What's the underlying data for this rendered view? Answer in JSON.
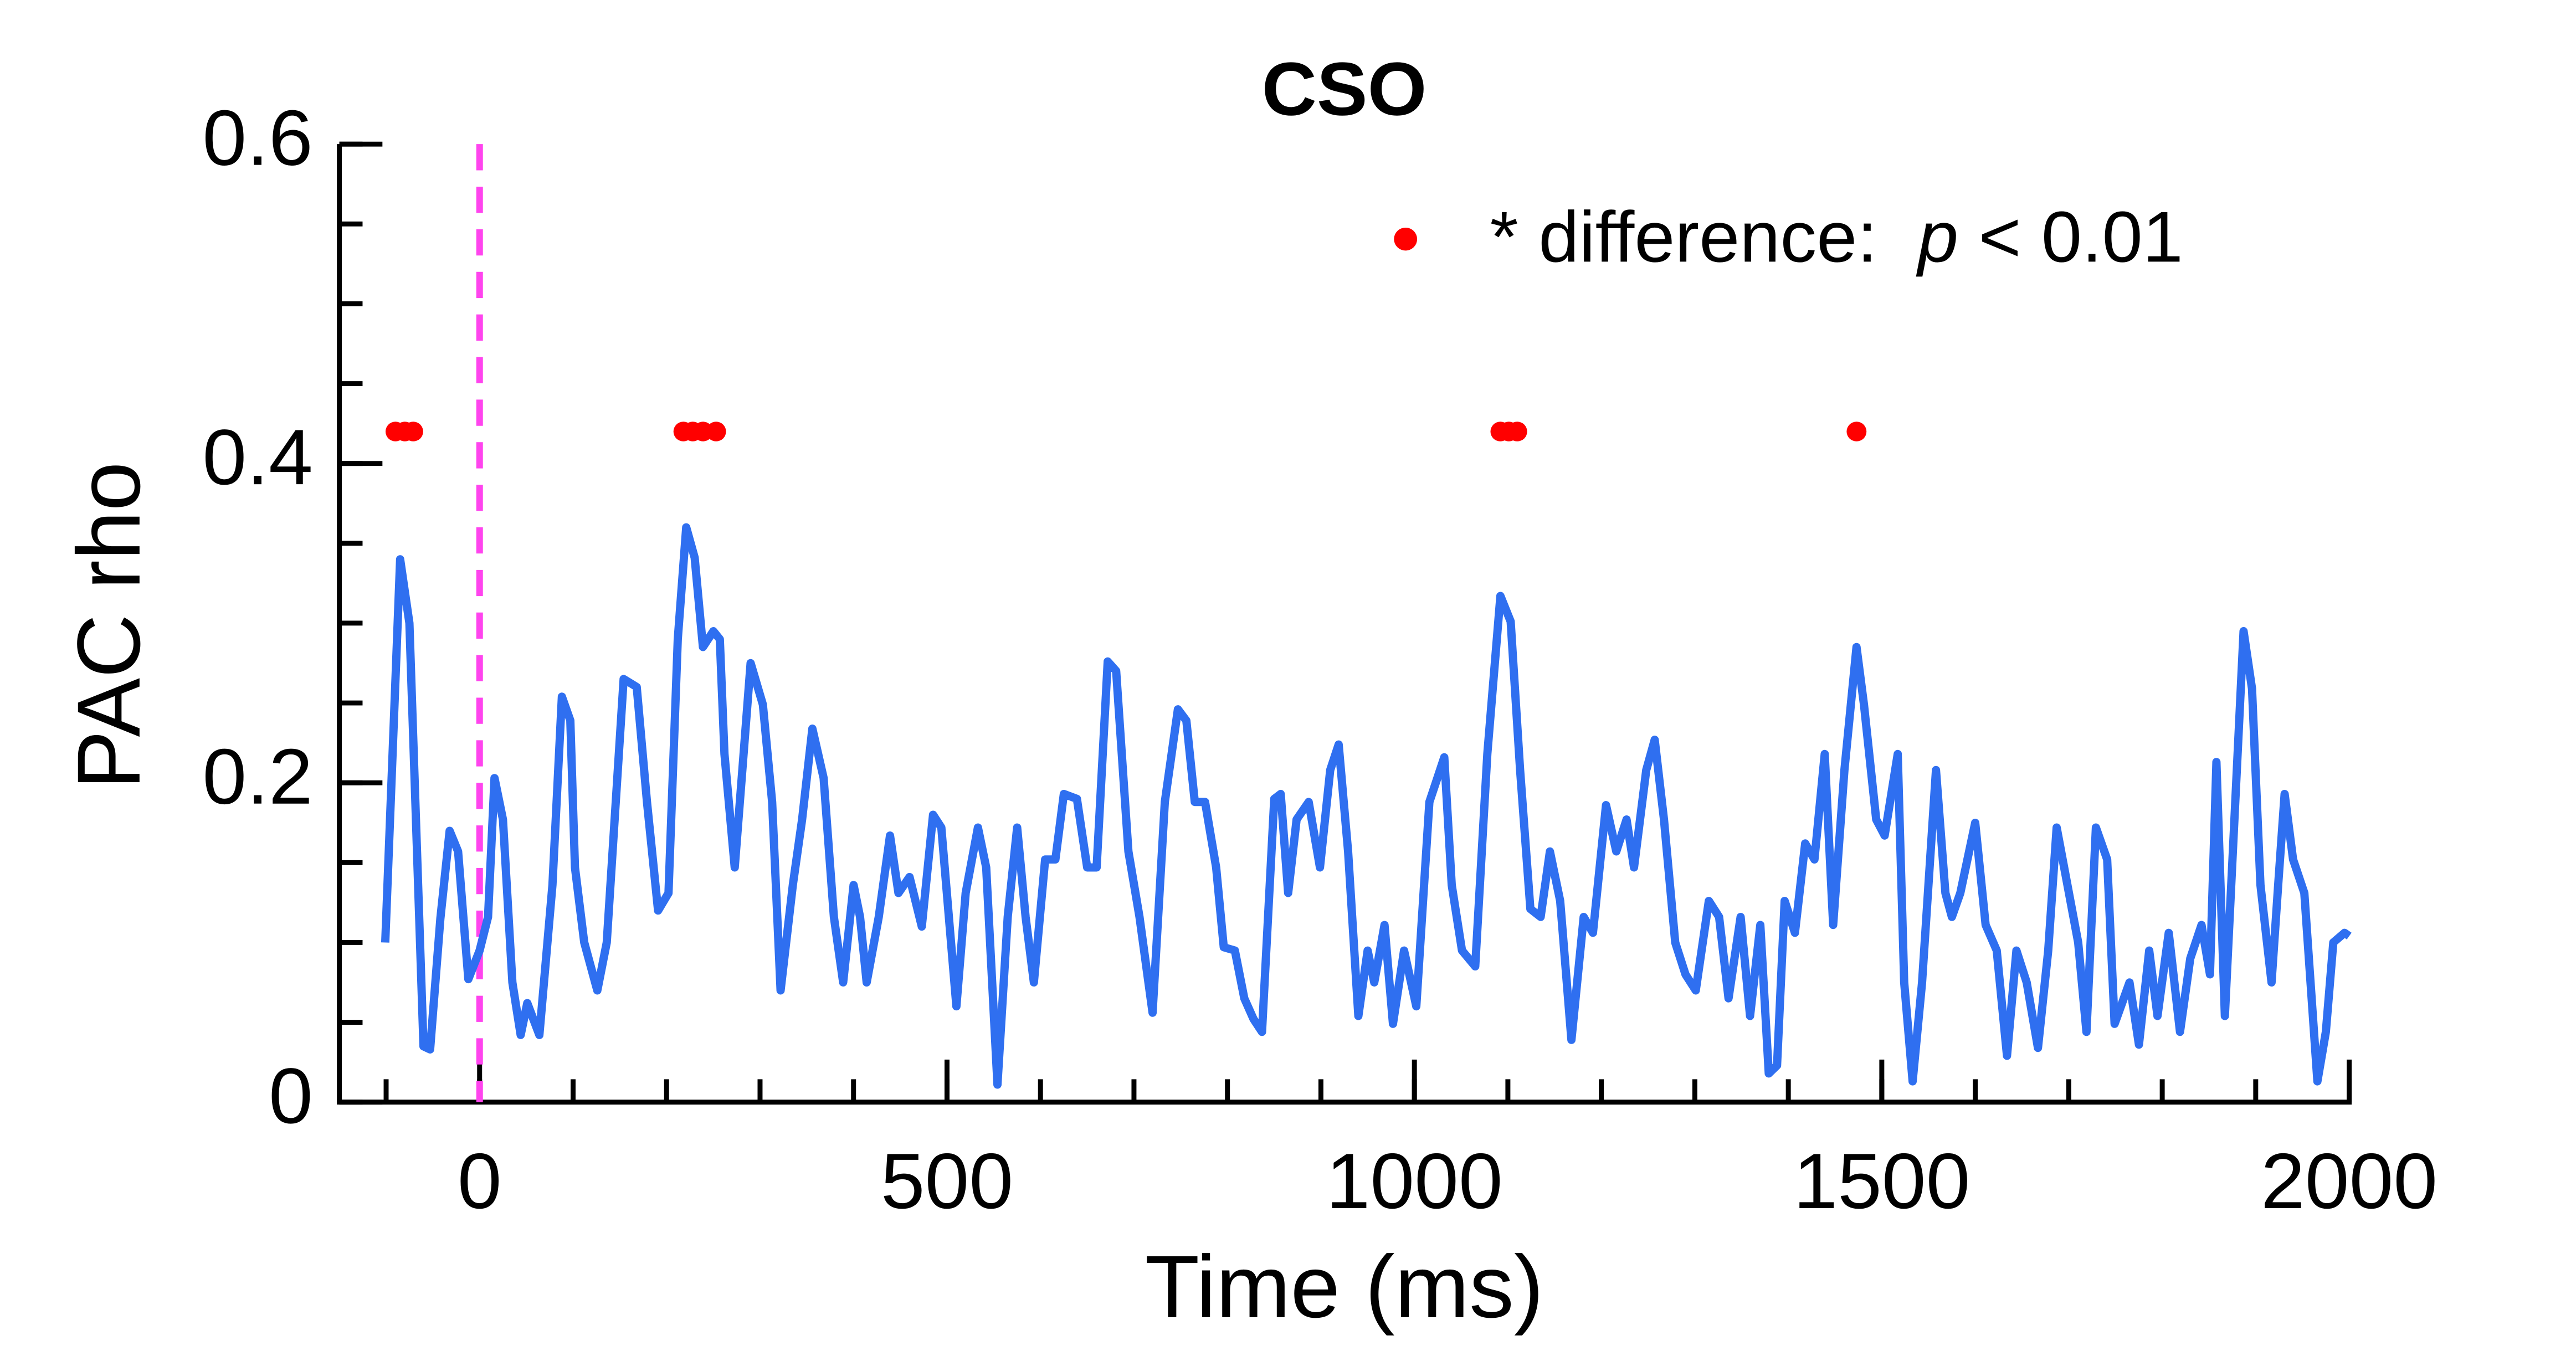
{
  "chart_data": {
    "type": "line",
    "title": "CSO",
    "xlabel": "Time (ms)",
    "ylabel": "PAC rho",
    "xlim": [
      -150,
      2000
    ],
    "ylim": [
      0,
      0.6
    ],
    "xticks": [
      0,
      500,
      1000,
      1500,
      2000
    ],
    "xminor": [
      -100,
      0,
      100,
      200,
      300,
      400,
      500,
      600,
      700,
      800,
      900,
      1000,
      1100,
      1200,
      1300,
      1400,
      1500,
      1600,
      1700,
      1800,
      1900,
      2000
    ],
    "yticks": [
      0,
      0.2,
      0.4,
      0.6
    ],
    "yminor": [
      0,
      0.05,
      0.1,
      0.15,
      0.2,
      0.25,
      0.3,
      0.35,
      0.4,
      0.45,
      0.5,
      0.55,
      0.6
    ],
    "vline": 0,
    "vline_color": "#ff44ee",
    "series": [
      {
        "name": "PAC",
        "color": "#2f6ff0",
        "x": [
          -101,
          -85,
          -75,
          -60,
          -53,
          -42,
          -32,
          -23,
          -12,
          0,
          9,
          16,
          25,
          35,
          44,
          51,
          64,
          78,
          88,
          97,
          102,
          112,
          126,
          136,
          154,
          168,
          179,
          191,
          202,
          212,
          221,
          230,
          239,
          250,
          257,
          262,
          273,
          281,
          290,
          303,
          313,
          322,
          335,
          345,
          356,
          368,
          379,
          389,
          400,
          407,
          414,
          427,
          439,
          448,
          460,
          473,
          485,
          494,
          510,
          520,
          533,
          542,
          554,
          565,
          575,
          584,
          593,
          605,
          616,
          625,
          639,
          650,
          660,
          672,
          681,
          694,
          706,
          720,
          733,
          747,
          756,
          765,
          776,
          788,
          796,
          808,
          818,
          828,
          837,
          850,
          857,
          865,
          874,
          887,
          899,
          910,
          919,
          929,
          940,
          950,
          957,
          968,
          977,
          989,
          1002,
          1016,
          1032,
          1040,
          1051,
          1065,
          1078,
          1092,
          1103,
          1113,
          1124,
          1135,
          1145,
          1156,
          1168,
          1181,
          1191,
          1205,
          1216,
          1227,
          1235,
          1248,
          1257,
          1267,
          1279,
          1290,
          1301,
          1315,
          1326,
          1336,
          1349,
          1359,
          1370,
          1379,
          1388,
          1396,
          1407,
          1418,
          1428,
          1439,
          1448,
          1460,
          1473,
          1481,
          1494,
          1503,
          1517,
          1524,
          1533,
          1543,
          1558,
          1568,
          1575,
          1584,
          1600,
          1611,
          1623,
          1634,
          1644,
          1655,
          1667,
          1678,
          1687,
          1697,
          1710,
          1719,
          1729,
          1741,
          1749,
          1765,
          1775,
          1786,
          1795,
          1807,
          1819,
          1830,
          1842,
          1851,
          1858,
          1867,
          1887,
          1896,
          1905,
          1917,
          1924,
          1931,
          1940,
          1952,
          1966,
          1975,
          1983,
          1995,
          2000
        ],
        "values": [
          0.1,
          0.34,
          0.3,
          0.035,
          0.033,
          0.115,
          0.17,
          0.157,
          0.077,
          0.095,
          0.116,
          0.203,
          0.177,
          0.075,
          0.042,
          0.062,
          0.042,
          0.136,
          0.254,
          0.239,
          0.147,
          0.1,
          0.07,
          0.1,
          0.265,
          0.26,
          0.188,
          0.12,
          0.131,
          0.29,
          0.36,
          0.341,
          0.285,
          0.295,
          0.29,
          0.218,
          0.147,
          0.208,
          0.275,
          0.249,
          0.188,
          0.07,
          0.136,
          0.177,
          0.234,
          0.203,
          0.116,
          0.075,
          0.136,
          0.116,
          0.075,
          0.116,
          0.167,
          0.131,
          0.141,
          0.11,
          0.18,
          0.172,
          0.06,
          0.131,
          0.172,
          0.147,
          0.011,
          0.116,
          0.172,
          0.116,
          0.075,
          0.152,
          0.152,
          0.193,
          0.19,
          0.147,
          0.147,
          0.276,
          0.27,
          0.157,
          0.116,
          0.056,
          0.188,
          0.246,
          0.239,
          0.188,
          0.188,
          0.147,
          0.097,
          0.095,
          0.065,
          0.052,
          0.044,
          0.19,
          0.193,
          0.131,
          0.177,
          0.188,
          0.147,
          0.208,
          0.224,
          0.157,
          0.054,
          0.095,
          0.075,
          0.111,
          0.049,
          0.095,
          0.06,
          0.188,
          0.216,
          0.136,
          0.095,
          0.085,
          0.218,
          0.317,
          0.301,
          0.208,
          0.121,
          0.116,
          0.157,
          0.126,
          0.039,
          0.116,
          0.106,
          0.186,
          0.157,
          0.177,
          0.147,
          0.208,
          0.227,
          0.177,
          0.1,
          0.08,
          0.07,
          0.126,
          0.116,
          0.065,
          0.116,
          0.054,
          0.111,
          0.018,
          0.023,
          0.126,
          0.106,
          0.162,
          0.152,
          0.218,
          0.111,
          0.208,
          0.285,
          0.249,
          0.177,
          0.167,
          0.218,
          0.075,
          0.013,
          0.075,
          0.208,
          0.131,
          0.116,
          0.131,
          0.175,
          0.111,
          0.095,
          0.029,
          0.095,
          0.075,
          0.034,
          0.095,
          0.172,
          0.141,
          0.1,
          0.044,
          0.172,
          0.152,
          0.049,
          0.075,
          0.036,
          0.095,
          0.054,
          0.106,
          0.044,
          0.09,
          0.111,
          0.08,
          0.213,
          0.054,
          0.295,
          0.259,
          0.136,
          0.075,
          0.136,
          0.193,
          0.152,
          0.131,
          0.013,
          0.044,
          0.1,
          0.106,
          0.104
        ]
      },
      {
        "name": "* difference:  p < 0.01",
        "color": "#ff0000",
        "marker": "dot",
        "x": [
          -90,
          -80,
          -71,
          218,
          228,
          239,
          253,
          1092,
          1101,
          1110,
          1473
        ],
        "values": [
          0.42,
          0.42,
          0.42,
          0.42,
          0.42,
          0.42,
          0.42,
          0.42,
          0.42,
          0.42,
          0.42
        ]
      }
    ]
  }
}
